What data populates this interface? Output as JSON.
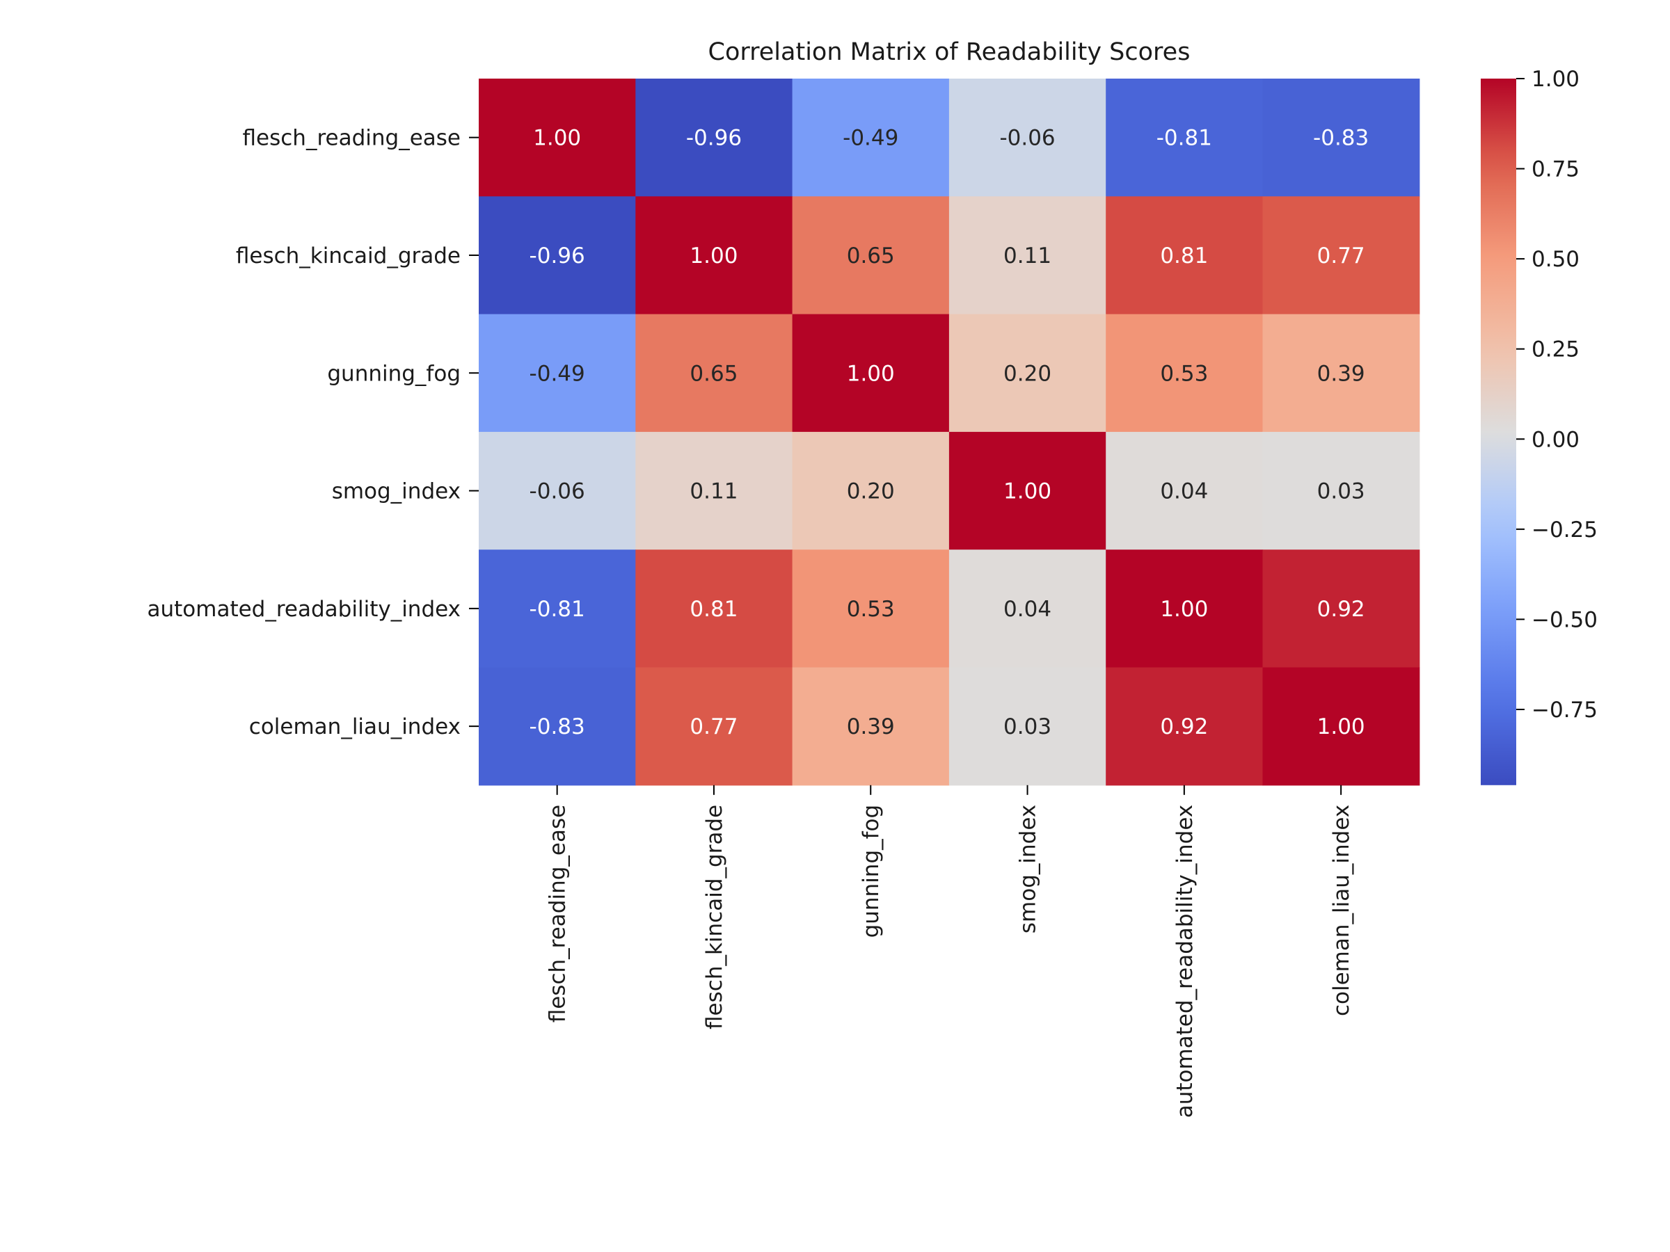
{
  "chart_data": {
    "type": "heatmap",
    "title": "Correlation Matrix of Readability Scores",
    "xlabel": "",
    "ylabel": "",
    "row_labels": [
      "flesch_reading_ease",
      "flesch_kincaid_grade",
      "gunning_fog",
      "smog_index",
      "automated_readability_index",
      "coleman_liau_index"
    ],
    "col_labels": [
      "flesch_reading_ease",
      "flesch_kincaid_grade",
      "gunning_fog",
      "smog_index",
      "automated_readability_index",
      "coleman_liau_index"
    ],
    "values": [
      [
        1.0,
        -0.96,
        -0.49,
        -0.06,
        -0.81,
        -0.83
      ],
      [
        -0.96,
        1.0,
        0.65,
        0.11,
        0.81,
        0.77
      ],
      [
        -0.49,
        0.65,
        1.0,
        0.2,
        0.53,
        0.39
      ],
      [
        -0.06,
        0.11,
        0.2,
        1.0,
        0.04,
        0.03
      ],
      [
        -0.81,
        0.81,
        0.53,
        0.04,
        1.0,
        0.92
      ],
      [
        -0.83,
        0.77,
        0.39,
        0.03,
        0.92,
        1.0
      ]
    ],
    "value_format": "0.00",
    "colormap": "coolwarm",
    "colorbar": {
      "range": [
        -0.96,
        1.0
      ],
      "ticks": [
        1.0,
        0.75,
        0.5,
        0.25,
        0.0,
        -0.25,
        -0.5,
        -0.75
      ],
      "tick_labels": [
        "1.00",
        "0.75",
        "0.50",
        "0.25",
        "0.00",
        "−0.25",
        "−0.50",
        "−0.75"
      ]
    },
    "grid": false,
    "legend": "colorbar-right"
  }
}
